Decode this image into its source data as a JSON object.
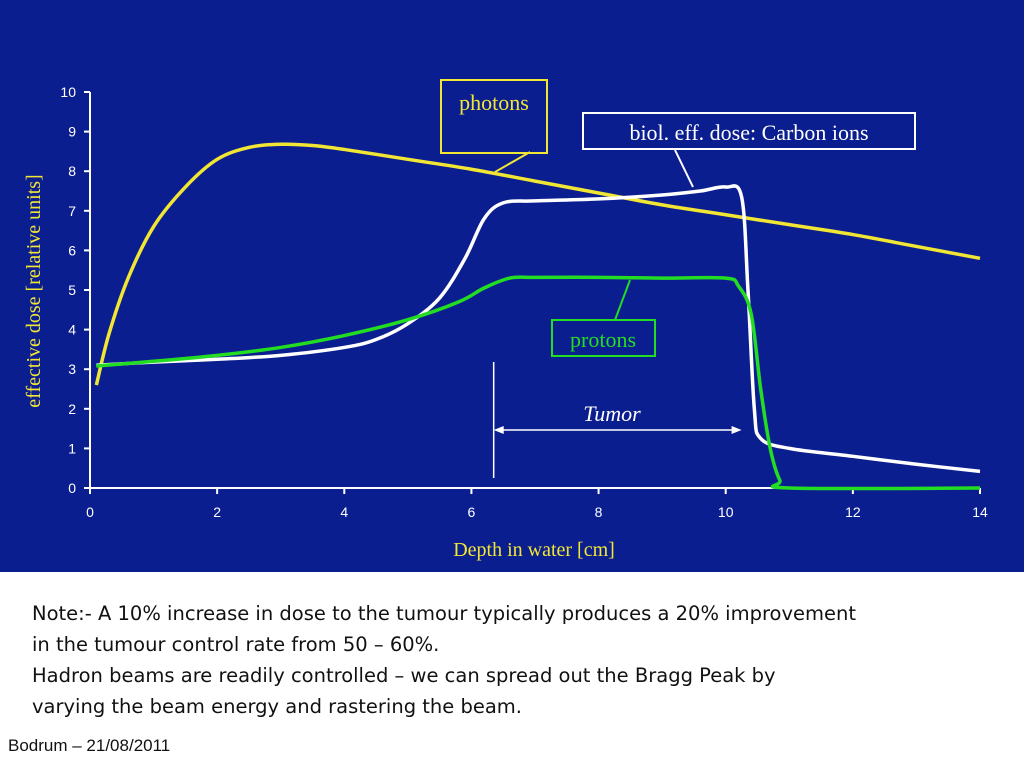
{
  "chart_data": {
    "type": "line",
    "xlabel": "Depth in water [cm]",
    "ylabel": "effective dose [relative units]",
    "xlim": [
      0,
      14
    ],
    "ylim": [
      0,
      10
    ],
    "x_ticks": [
      0,
      2,
      4,
      6,
      8,
      10,
      12,
      14
    ],
    "y_ticks": [
      0,
      1,
      2,
      3,
      4,
      5,
      6,
      7,
      8,
      9,
      10
    ],
    "grid": false,
    "series": [
      {
        "name": "photons",
        "color": "#f2e634",
        "points": [
          [
            0.1,
            2.6
          ],
          [
            0.3,
            3.9
          ],
          [
            0.6,
            5.3
          ],
          [
            1.0,
            6.6
          ],
          [
            1.5,
            7.6
          ],
          [
            2.0,
            8.3
          ],
          [
            2.5,
            8.6
          ],
          [
            3.0,
            8.68
          ],
          [
            3.5,
            8.65
          ],
          [
            4.0,
            8.55
          ],
          [
            5.0,
            8.3
          ],
          [
            6.0,
            8.05
          ],
          [
            7.0,
            7.75
          ],
          [
            8.0,
            7.45
          ],
          [
            9.0,
            7.15
          ],
          [
            10.0,
            6.9
          ],
          [
            11.0,
            6.65
          ],
          [
            12.0,
            6.4
          ],
          [
            13.0,
            6.1
          ],
          [
            14.0,
            5.8
          ]
        ]
      },
      {
        "name": "biol. eff. dose: Carbon ions",
        "color": "#ffffff",
        "points": [
          [
            0.1,
            3.1
          ],
          [
            1.0,
            3.18
          ],
          [
            2.0,
            3.25
          ],
          [
            3.0,
            3.35
          ],
          [
            4.0,
            3.55
          ],
          [
            4.5,
            3.75
          ],
          [
            5.0,
            4.15
          ],
          [
            5.5,
            4.8
          ],
          [
            5.9,
            5.8
          ],
          [
            6.2,
            6.8
          ],
          [
            6.5,
            7.2
          ],
          [
            7.0,
            7.25
          ],
          [
            8.0,
            7.3
          ],
          [
            9.0,
            7.4
          ],
          [
            9.6,
            7.5
          ],
          [
            10.0,
            7.6
          ],
          [
            10.25,
            7.35
          ],
          [
            10.35,
            5.0
          ],
          [
            10.45,
            2.0
          ],
          [
            10.55,
            1.25
          ],
          [
            11.0,
            1.0
          ],
          [
            12.0,
            0.8
          ],
          [
            13.0,
            0.6
          ],
          [
            14.0,
            0.42
          ]
        ]
      },
      {
        "name": "protons",
        "color": "#22dd22",
        "points": [
          [
            0.1,
            3.08
          ],
          [
            1.0,
            3.2
          ],
          [
            2.0,
            3.35
          ],
          [
            3.0,
            3.55
          ],
          [
            4.0,
            3.85
          ],
          [
            5.0,
            4.25
          ],
          [
            5.8,
            4.7
          ],
          [
            6.2,
            5.05
          ],
          [
            6.6,
            5.3
          ],
          [
            7.0,
            5.32
          ],
          [
            8.0,
            5.32
          ],
          [
            9.0,
            5.3
          ],
          [
            10.0,
            5.3
          ],
          [
            10.2,
            5.1
          ],
          [
            10.4,
            4.4
          ],
          [
            10.55,
            2.5
          ],
          [
            10.7,
            1.0
          ],
          [
            10.85,
            0.2
          ],
          [
            11.0,
            0.0
          ],
          [
            14.0,
            0.0
          ]
        ]
      }
    ],
    "annotations": [
      {
        "label": "photons",
        "color": "#f2e634"
      },
      {
        "label": "biol. eff. dose: Carbon ions",
        "color": "#ffffff"
      },
      {
        "label": "protons",
        "color": "#22dd22"
      },
      {
        "label": "Tumor",
        "x_range": [
          6.35,
          10.25
        ],
        "color": "#ffffff"
      }
    ]
  },
  "notes": {
    "line1": "Note:- A 10% increase in dose to the tumour typically produces a 20% improvement",
    "line2": "in the tumour control rate from 50 – 60%.",
    "line3": "Hadron beams are readily controlled – we can spread out the Bragg Peak by",
    "line4": "varying the beam energy and rastering the beam."
  },
  "footer": {
    "text": "Bodrum – 21/08/2011"
  }
}
